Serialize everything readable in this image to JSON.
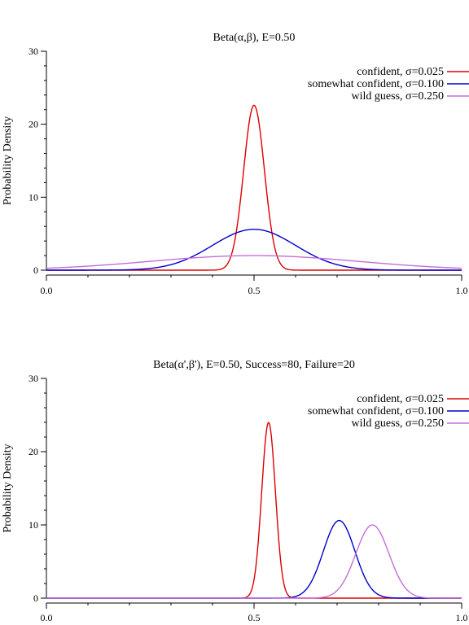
{
  "chart_data": [
    {
      "type": "line",
      "title": "Beta(α,β), E=0.50",
      "xlabel": "",
      "ylabel": "Probability Density",
      "xlim": [
        0.0,
        1.0
      ],
      "ylim": [
        0,
        30
      ],
      "x_ticks": [
        "0.0",
        "0.5",
        "1.0"
      ],
      "y_ticks": [
        "0",
        "10",
        "20",
        "30"
      ],
      "legend_position": "top-right",
      "grid": false,
      "series": [
        {
          "name": "confident, σ=0.025",
          "color": "#dd0000",
          "mean": 0.5,
          "sd": 0.025,
          "peak": 22.6
        },
        {
          "name": "somewhat confident, σ=0.100",
          "color": "#0000cc",
          "mean": 0.5,
          "sd": 0.1,
          "peak": 5.6
        },
        {
          "name": "wild guess, σ=0.250",
          "color": "#c36fd6",
          "mean": 0.5,
          "sd": 0.25,
          "peak": 2.0
        }
      ]
    },
    {
      "type": "line",
      "title": "Beta(α',β'), E=0.50, Success=80, Failure=20",
      "xlabel": "",
      "ylabel": "Probability Density",
      "xlim": [
        0.0,
        1.0
      ],
      "ylim": [
        0,
        30
      ],
      "x_ticks": [
        "0.0",
        "0.5",
        "1.0"
      ],
      "y_ticks": [
        "0",
        "10",
        "20",
        "30"
      ],
      "legend_position": "top-right",
      "grid": false,
      "series": [
        {
          "name": "confident, σ=0.025",
          "color": "#dd0000",
          "mean": 0.535,
          "sd": 0.0165,
          "peak": 24.0
        },
        {
          "name": "somewhat confident, σ=0.100",
          "color": "#0000cc",
          "mean": 0.705,
          "sd": 0.038,
          "peak": 10.6
        },
        {
          "name": "wild guess, σ=0.250",
          "color": "#c36fd6",
          "mean": 0.785,
          "sd": 0.04,
          "peak": 10.0
        }
      ]
    }
  ]
}
